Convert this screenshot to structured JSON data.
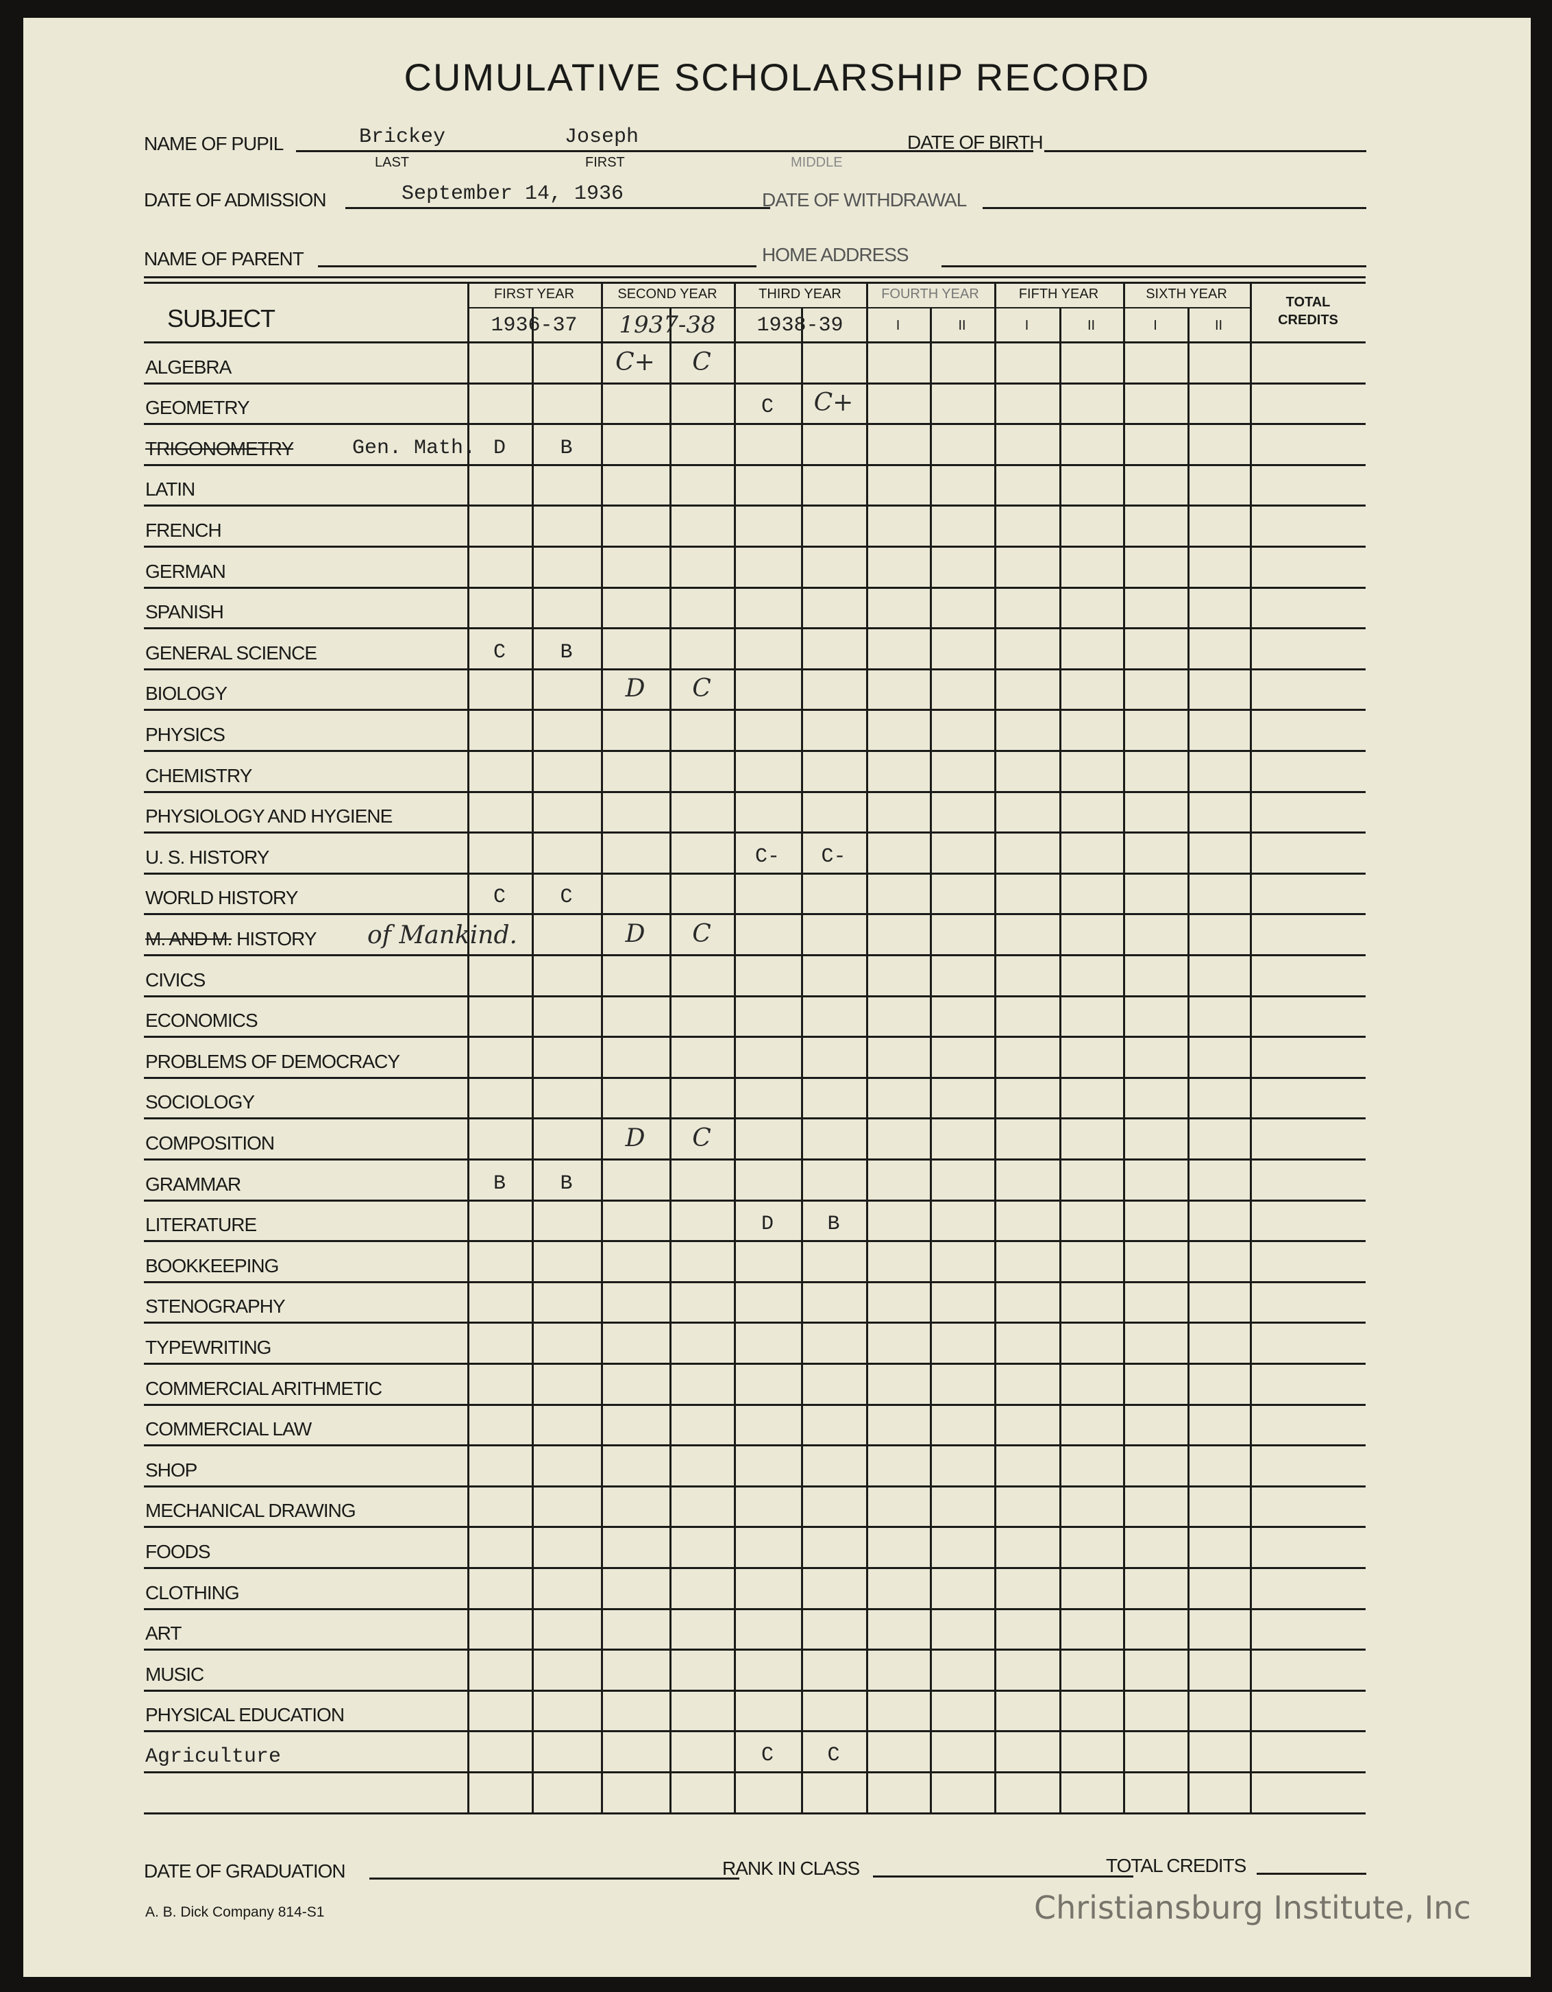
{
  "title": "CUMULATIVE SCHOLARSHIP RECORD",
  "header": {
    "name_of_pupil_label": "NAME OF PUPIL",
    "last_name": "Brickey",
    "first_name": "Joseph",
    "last_label": "LAST",
    "first_label": "FIRST",
    "middle_label": "MIDDLE",
    "date_of_birth_label": "DATE OF BIRTH",
    "date_of_admission_label": "DATE OF ADMISSION",
    "date_of_admission": "September 14, 1936",
    "date_of_withdrawal_label": "DATE OF WITHDRAWAL",
    "name_of_parent_label": "NAME OF PARENT",
    "home_address_label": "HOME ADDRESS"
  },
  "table": {
    "subject_header": "SUBJECT",
    "total_credits_header": "TOTAL CREDITS",
    "years": [
      {
        "label": "FIRST YEAR",
        "school_year": "1936-37",
        "sem": [
          "",
          ""
        ]
      },
      {
        "label": "SECOND YEAR",
        "school_year": "1937-38",
        "sem": [
          "",
          ""
        ]
      },
      {
        "label": "THIRD YEAR",
        "school_year": "1938-39",
        "sem": [
          "",
          ""
        ]
      },
      {
        "label": "FOURTH YEAR",
        "school_year": "",
        "sem": [
          "I",
          "II"
        ]
      },
      {
        "label": "FIFTH YEAR",
        "school_year": "",
        "sem": [
          "I",
          "II"
        ]
      },
      {
        "label": "SIXTH YEAR",
        "school_year": "",
        "sem": [
          "I",
          "II"
        ]
      }
    ],
    "rows": [
      {
        "subject": "ALGEBRA",
        "grades": [
          "",
          "",
          "C+",
          "C",
          "",
          "",
          "",
          "",
          "",
          "",
          "",
          ""
        ]
      },
      {
        "subject": "GEOMETRY",
        "grades": [
          "",
          "",
          "",
          "",
          "C",
          "C+",
          "",
          "",
          "",
          "",
          "",
          ""
        ]
      },
      {
        "subject": "TRIGONOMETRY",
        "struck": true,
        "note": "Gen. Math.",
        "grades": [
          "D",
          "B",
          "",
          "",
          "",
          "",
          "",
          "",
          "",
          "",
          "",
          ""
        ]
      },
      {
        "subject": "LATIN",
        "grades": []
      },
      {
        "subject": "FRENCH",
        "grades": []
      },
      {
        "subject": "GERMAN",
        "grades": []
      },
      {
        "subject": "SPANISH",
        "grades": []
      },
      {
        "subject": "GENERAL SCIENCE",
        "grades": [
          "C",
          "B",
          "",
          "",
          "",
          "",
          "",
          "",
          "",
          "",
          "",
          ""
        ]
      },
      {
        "subject": "BIOLOGY",
        "grades": [
          "",
          "",
          "D",
          "C",
          "",
          "",
          "",
          "",
          "",
          "",
          "",
          ""
        ]
      },
      {
        "subject": "PHYSICS",
        "grades": []
      },
      {
        "subject": "CHEMISTRY",
        "grades": []
      },
      {
        "subject": "PHYSIOLOGY AND HYGIENE",
        "grades": []
      },
      {
        "subject": "U. S. HISTORY",
        "grades": [
          "",
          "",
          "",
          "",
          "C-",
          "C-",
          "",
          "",
          "",
          "",
          "",
          ""
        ]
      },
      {
        "subject": "WORLD HISTORY",
        "grades": [
          "C",
          "C",
          "",
          "",
          "",
          "",
          "",
          "",
          "",
          "",
          "",
          ""
        ]
      },
      {
        "subject": "M. AND M. HISTORY",
        "struck_part": "M. AND M.",
        "note": "of Mankind.",
        "grades": [
          "",
          "",
          "D",
          "C",
          "",
          "",
          "",
          "",
          "",
          "",
          "",
          ""
        ]
      },
      {
        "subject": "CIVICS",
        "grades": []
      },
      {
        "subject": "ECONOMICS",
        "grades": []
      },
      {
        "subject": "PROBLEMS OF DEMOCRACY",
        "grades": []
      },
      {
        "subject": "SOCIOLOGY",
        "grades": []
      },
      {
        "subject": "COMPOSITION",
        "grades": [
          "",
          "",
          "D",
          "C",
          "",
          "",
          "",
          "",
          "",
          "",
          "",
          ""
        ]
      },
      {
        "subject": "GRAMMAR",
        "grades": [
          "B",
          "B",
          "",
          "",
          "",
          "",
          "",
          "",
          "",
          "",
          "",
          ""
        ]
      },
      {
        "subject": "LITERATURE",
        "grades": [
          "",
          "",
          "",
          "",
          "D",
          "B",
          "",
          "",
          "",
          "",
          "",
          ""
        ]
      },
      {
        "subject": "BOOKKEEPING",
        "grades": []
      },
      {
        "subject": "STENOGRAPHY",
        "grades": []
      },
      {
        "subject": "TYPEWRITING",
        "grades": []
      },
      {
        "subject": "COMMERCIAL ARITHMETIC",
        "grades": []
      },
      {
        "subject": "COMMERCIAL LAW",
        "grades": []
      },
      {
        "subject": "SHOP",
        "grades": []
      },
      {
        "subject": "MECHANICAL DRAWING",
        "grades": []
      },
      {
        "subject": "FOODS",
        "grades": []
      },
      {
        "subject": "CLOTHING",
        "grades": []
      },
      {
        "subject": "ART",
        "grades": []
      },
      {
        "subject": "MUSIC",
        "grades": []
      },
      {
        "subject": "PHYSICAL EDUCATION",
        "grades": []
      },
      {
        "subject": "Agriculture",
        "typed": true,
        "grades": [
          "",
          "",
          "",
          "",
          "C",
          "C",
          "",
          "",
          "",
          "",
          "",
          ""
        ]
      },
      {
        "subject": "",
        "grades": []
      }
    ]
  },
  "footer": {
    "date_of_graduation_label": "DATE OF GRADUATION",
    "rank_in_class_label": "RANK IN CLASS",
    "total_credits_label": "TOTAL CREDITS",
    "printer": "A. B. Dick Company  814-S1"
  },
  "watermark": "Christiansburg Institute, Inc"
}
